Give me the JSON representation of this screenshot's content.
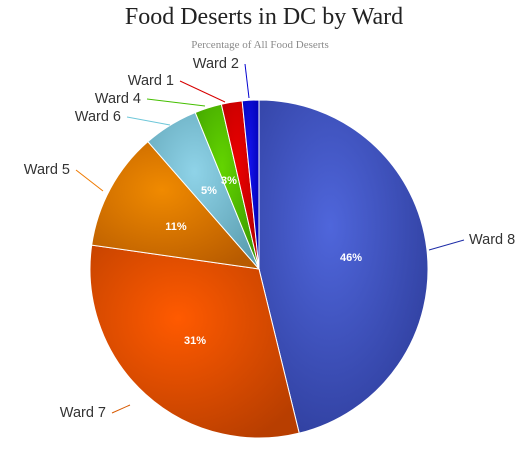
{
  "chart_data": {
    "type": "pie",
    "title": "Food Deserts in DC by Ward",
    "subtitle": "Percentage of All Food Deserts",
    "slices": [
      {
        "label": "Ward 8",
        "value": 46.5,
        "display": "46%",
        "color": "#3f52c8",
        "gradient": [
          "#4f66db",
          "#2e3d9b"
        ],
        "connector": "#1d2ca8"
      },
      {
        "label": "Ward 7",
        "value": 31.3,
        "display": "31%",
        "color": "#e55300",
        "gradient": [
          "#ff5a00",
          "#b83e00"
        ],
        "connector": "#d85a00"
      },
      {
        "label": "Ward 5",
        "value": 11.4,
        "display": "11%",
        "color": "#d56b00",
        "gradient": [
          "#f08a00",
          "#b85b00"
        ],
        "connector": "#f07a00"
      },
      {
        "label": "Ward 6",
        "value": 5.3,
        "display": "5%",
        "color": "#73b8cb",
        "gradient": [
          "#8fd3e8",
          "#5c9fb1"
        ],
        "connector": "#6ec7d9"
      },
      {
        "label": "Ward 4",
        "value": 2.6,
        "display": "3%",
        "color": "#4dbb00",
        "gradient": [
          "#63d400",
          "#3b9a00"
        ],
        "connector": "#45bf00"
      },
      {
        "label": "Ward 1",
        "value": 2.0,
        "display": "",
        "color": "#d00000",
        "gradient": [
          "#eb0000",
          "#b40000"
        ],
        "connector": "#d70000"
      },
      {
        "label": "Ward 2",
        "value": 1.6,
        "display": "",
        "color": "#0000d0",
        "gradient": [
          "#1414ef",
          "#0000b0"
        ],
        "connector": "#0000d0"
      }
    ]
  }
}
